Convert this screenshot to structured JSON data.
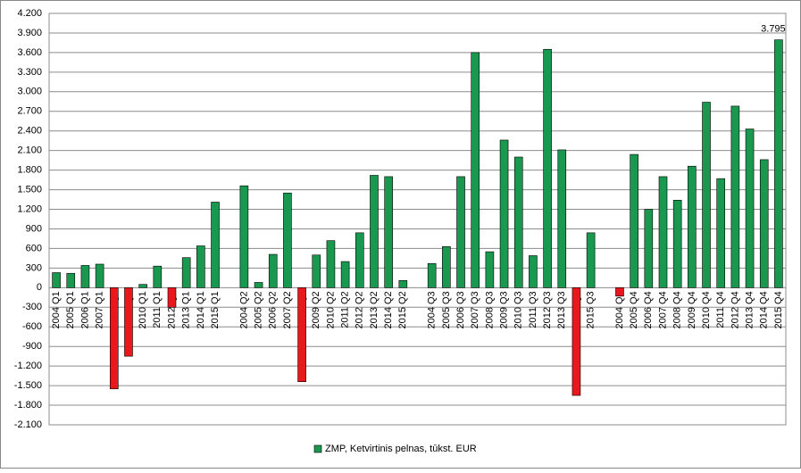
{
  "chart_data": {
    "type": "bar",
    "categories": [
      "2004 Q1",
      "2005 Q1",
      "2006 Q1",
      "2007 Q1",
      "2008 Q1",
      "2009 Q1",
      "2010 Q1",
      "2011 Q1",
      "2012 Q1",
      "2013 Q1",
      "2014 Q1",
      "2015 Q1",
      null,
      "2004 Q2",
      "2005 Q2",
      "2006 Q2",
      "2007 Q2",
      "2008 Q2",
      "2009 Q2",
      "2010 Q2",
      "2011 Q2",
      "2012 Q2",
      "2013 Q2",
      "2014 Q2",
      "2015 Q2",
      null,
      "2004 Q3",
      "2005 Q3",
      "2006 Q3",
      "2007 Q3",
      "2008 Q3",
      "2009 Q3",
      "2010 Q3",
      "2011 Q3",
      "2012 Q3",
      "2013 Q3",
      "2014 Q3",
      "2015 Q3",
      null,
      "2004 Q4",
      "2005 Q4",
      "2006 Q4",
      "2007 Q4",
      "2008 Q4",
      "2009 Q4",
      "2010 Q4",
      "2011 Q4",
      "2012 Q4",
      "2013 Q4",
      "2014 Q4",
      "2015 Q4"
    ],
    "series": [
      {
        "name": "ZMP, Ketvirtinis pelnas, tūkst. EUR",
        "color": "#1a9850",
        "negative_color": "#e8181c",
        "values": [
          230,
          220,
          340,
          360,
          -1550,
          -1050,
          50,
          330,
          -300,
          460,
          640,
          1310,
          null,
          1560,
          80,
          510,
          1450,
          -1440,
          500,
          720,
          400,
          840,
          1720,
          1700,
          110,
          null,
          370,
          630,
          1700,
          3600,
          550,
          2260,
          2000,
          490,
          3650,
          2110,
          -1650,
          840,
          null,
          -130,
          2040,
          1200,
          1700,
          1340,
          1860,
          2840,
          1670,
          2780,
          2430,
          1960,
          3795
        ],
        "value_labels": [
          null,
          null,
          null,
          null,
          null,
          null,
          null,
          null,
          null,
          null,
          null,
          null,
          null,
          null,
          null,
          null,
          null,
          null,
          null,
          null,
          null,
          null,
          null,
          null,
          null,
          null,
          null,
          null,
          null,
          null,
          null,
          null,
          null,
          null,
          null,
          null,
          null,
          null,
          null,
          null,
          null,
          null,
          null,
          null,
          null,
          null,
          null,
          null,
          null,
          null,
          "3.795"
        ]
      }
    ],
    "ylim": [
      -2100,
      4200
    ],
    "yticks": [
      {
        "value": -2100,
        "label": "-2.100"
      },
      {
        "value": -1800,
        "label": "-1.800"
      },
      {
        "value": -1500,
        "label": "-1.500"
      },
      {
        "value": -1200,
        "label": "-1.200"
      },
      -900,
      -600,
      -300,
      0,
      300,
      600,
      900,
      {
        "value": 1200,
        "label": "1.200"
      },
      {
        "value": 1500,
        "label": "1.500"
      },
      {
        "value": 1800,
        "label": "1.800"
      },
      {
        "value": 2100,
        "label": "2.100"
      },
      {
        "value": 2400,
        "label": "2.400"
      },
      {
        "value": 2700,
        "label": "2.700"
      },
      {
        "value": 3000,
        "label": "3.000"
      },
      {
        "value": 3300,
        "label": "3.300"
      },
      {
        "value": 3600,
        "label": "3.600"
      },
      {
        "value": 3900,
        "label": "3.900"
      },
      {
        "value": 4200,
        "label": "4.200"
      }
    ],
    "grid": true,
    "legend": "bottom"
  }
}
